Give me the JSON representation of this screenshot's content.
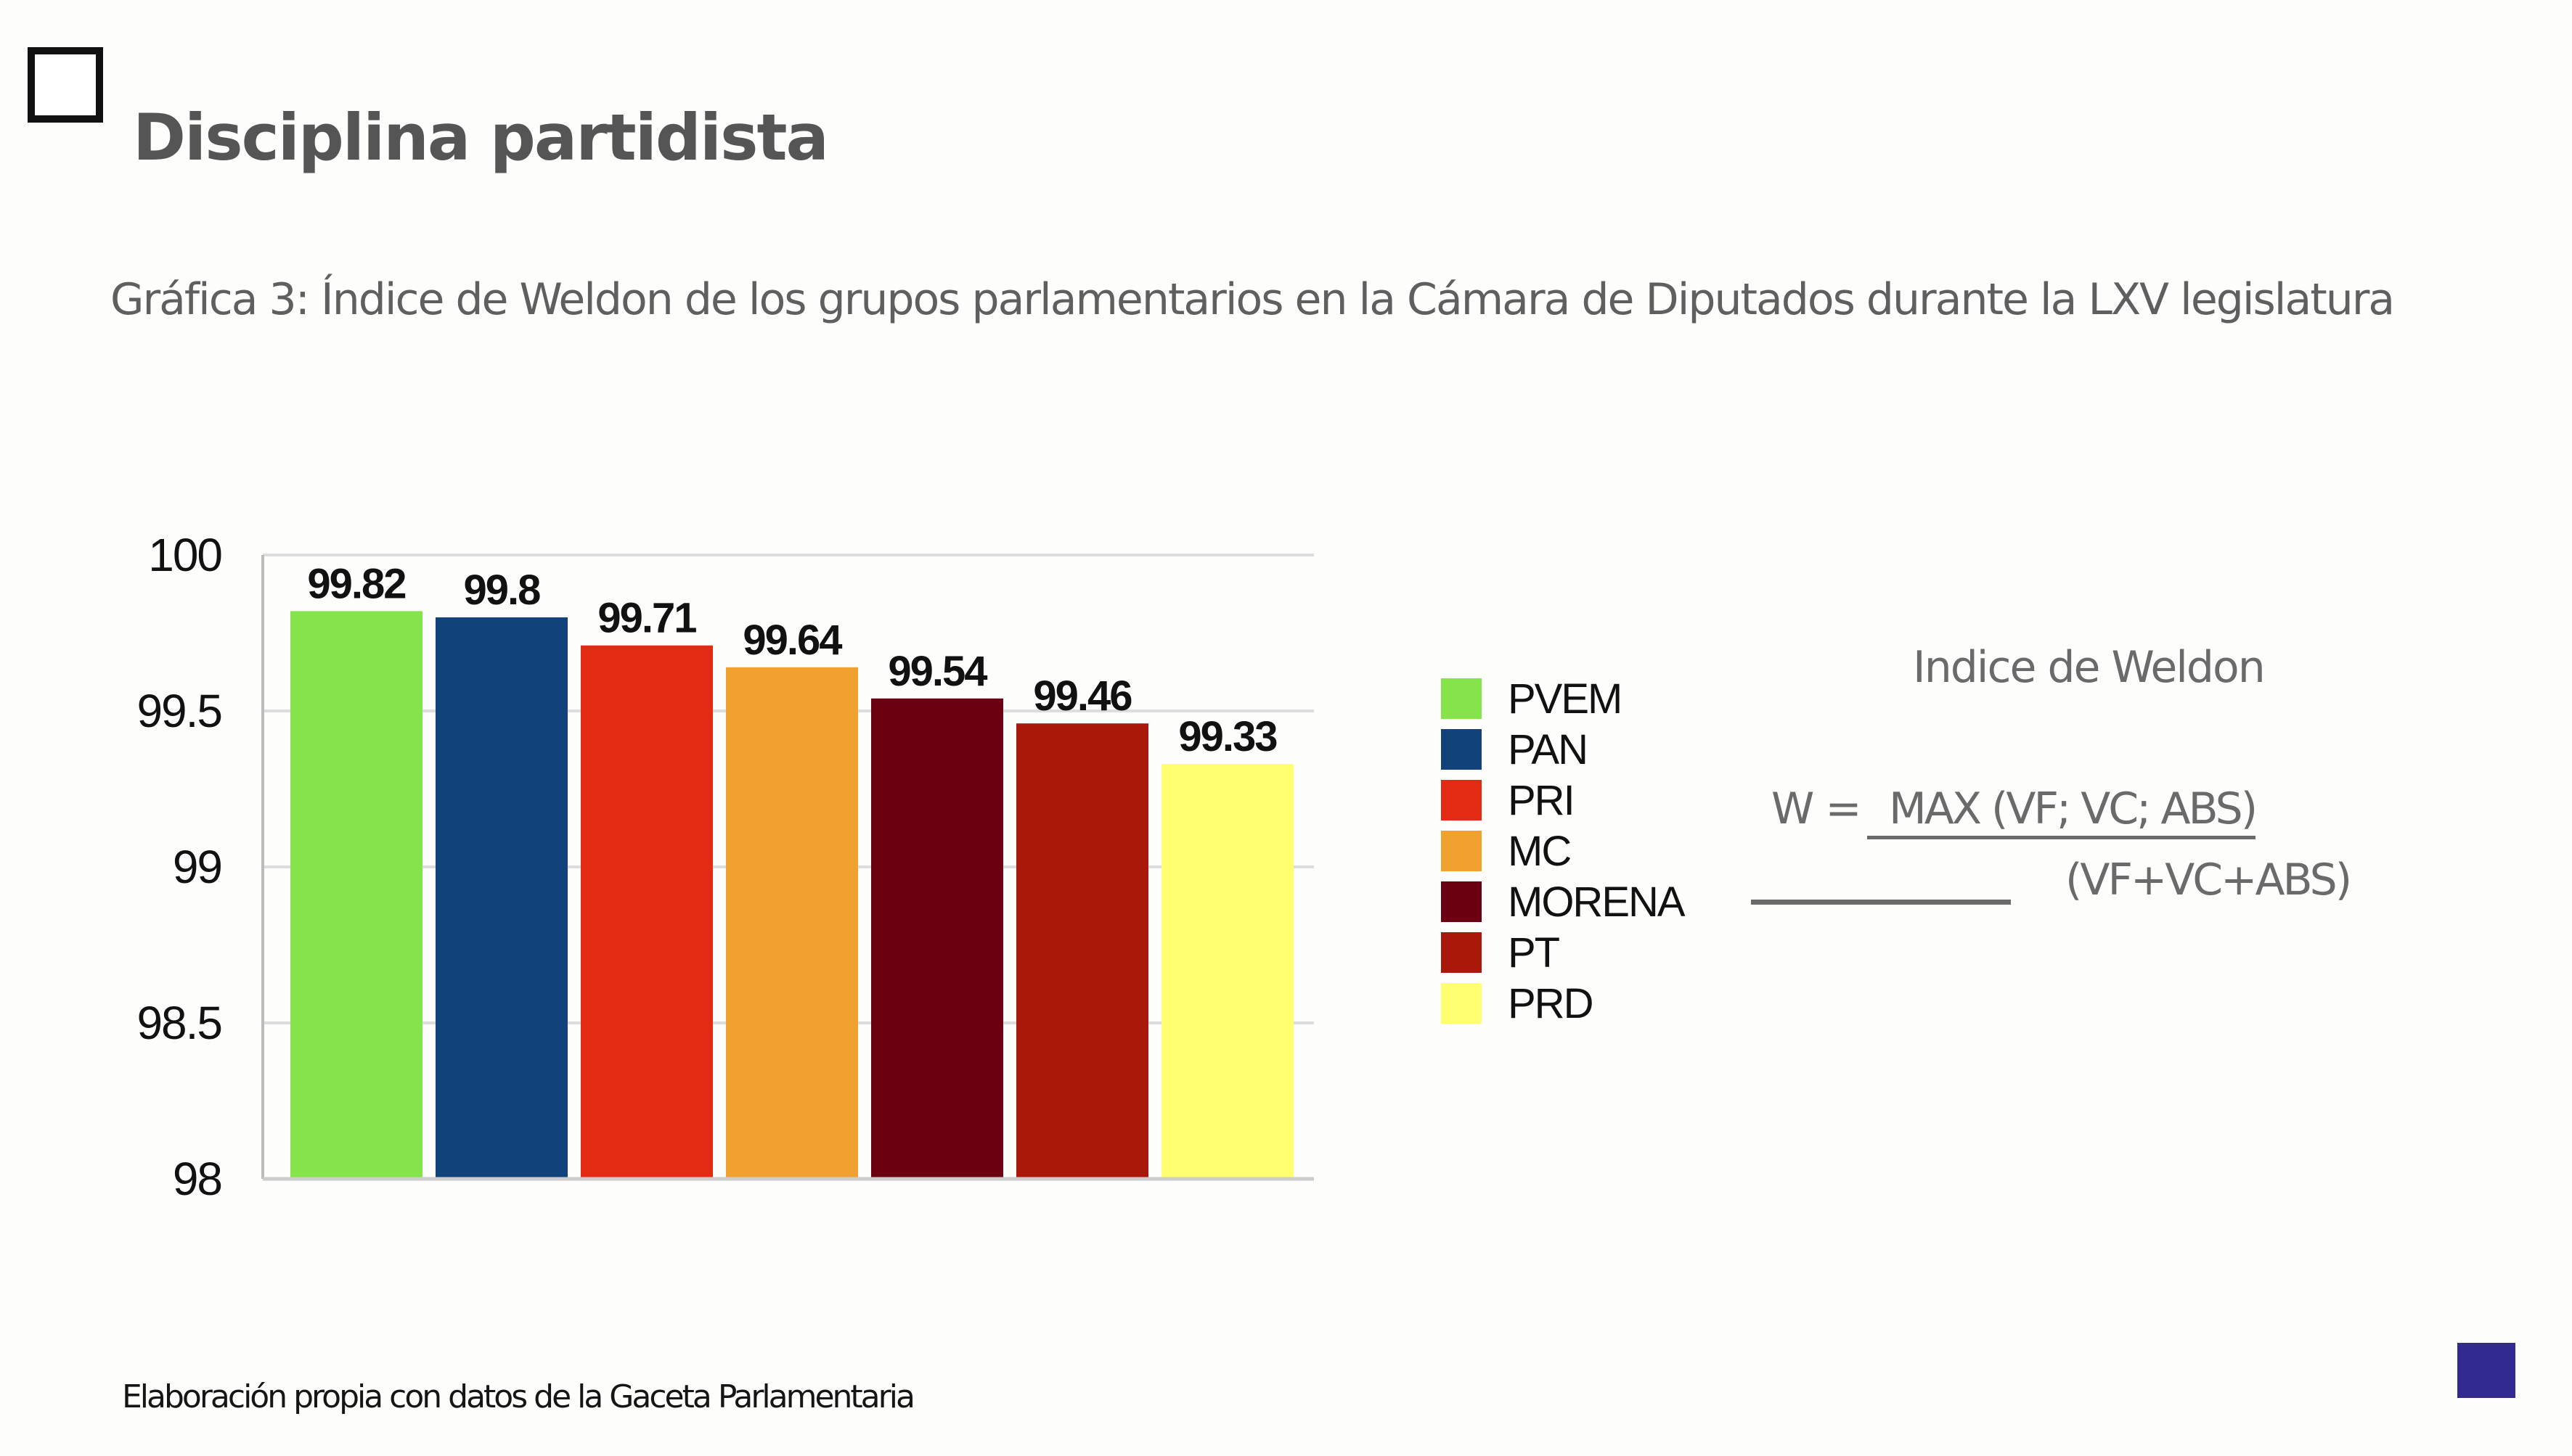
{
  "slide": {
    "title": "Disciplina partidista",
    "subtitle": "Gráfica 3: Índice de Weldon de los grupos parlamentarios en la Cámara de Diputados durante la LXV legislatura",
    "footnote": "Elaboración propia con datos  de la Gaceta Parlamentaria",
    "corner_square_color": "#332a8f"
  },
  "formula": {
    "title": "Indice de Weldon",
    "lhs": "W =",
    "numerator": "MAX (VF; VC; ABS)",
    "denominator": "(VF+VC+ABS)"
  },
  "chart_data": {
    "type": "bar",
    "title": "",
    "xlabel": "",
    "ylabel": "",
    "categories": [
      "PVEM",
      "PAN",
      "PRI",
      "MC",
      "MORENA",
      "PT",
      "PRD"
    ],
    "values": [
      99.82,
      99.8,
      99.71,
      99.64,
      99.54,
      99.46,
      99.33
    ],
    "value_labels": [
      "99.82",
      "99.8",
      "99.71",
      "99.64",
      "99.54",
      "99.46",
      "99.33"
    ],
    "colors": [
      "#86e44b",
      "#11427a",
      "#e22a14",
      "#f0a12f",
      "#6b0012",
      "#aa170b",
      "#ffff70"
    ],
    "ylim": [
      98,
      100
    ],
    "yticks": [
      98,
      98.5,
      99,
      99.5,
      100
    ],
    "ytick_labels": [
      "98",
      "98.5",
      "99",
      "99.5",
      "100"
    ],
    "grid": true,
    "legend_position": "right",
    "legend": [
      "PVEM",
      "PAN",
      "PRI",
      "MC",
      "MORENA",
      "PT",
      "PRD"
    ]
  }
}
